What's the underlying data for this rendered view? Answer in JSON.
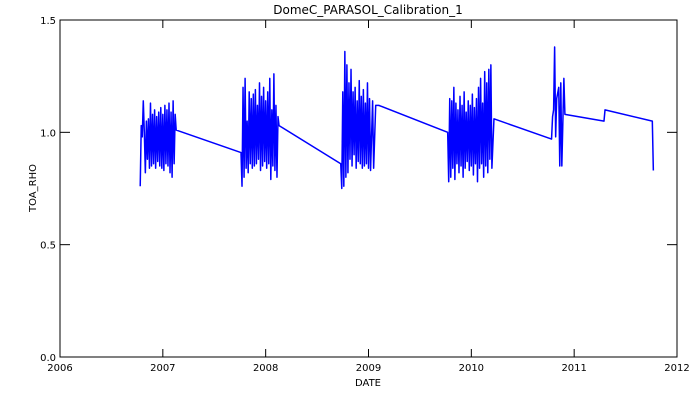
{
  "chart_data": {
    "type": "line",
    "title": "DomeC_PARASOL_Calibration_1",
    "x_label": "DATE",
    "y_label": "TOA_RHO",
    "xlim": [
      2006,
      2012
    ],
    "xticks": [
      2006,
      2007,
      2008,
      2009,
      2010,
      2011,
      2012
    ],
    "ylim": [
      0,
      1.5
    ],
    "yticks": [
      {
        "value": 0,
        "label": "0.0"
      },
      0.5,
      {
        "value": 1,
        "label": "1.0"
      },
      1.5
    ],
    "series": [
      {
        "color": "#0000ff",
        "x": [
          2006.78,
          2006.79,
          2006.8,
          2006.81,
          2006.82,
          2006.83,
          2006.84,
          2006.85,
          2006.86,
          2006.87,
          2006.88,
          2006.89,
          2006.9,
          2006.91,
          2006.92,
          2006.93,
          2006.94,
          2006.95,
          2006.96,
          2006.97,
          2006.98,
          2006.99,
          2007.0,
          2007.01,
          2007.02,
          2007.03,
          2007.04,
          2007.05,
          2007.06,
          2007.07,
          2007.08,
          2007.09,
          2007.1,
          2007.11,
          2007.12,
          2007.13,
          2007.76,
          2007.77,
          2007.78,
          2007.79,
          2007.8,
          2007.81,
          2007.82,
          2007.83,
          2007.84,
          2007.85,
          2007.86,
          2007.87,
          2007.88,
          2007.89,
          2007.9,
          2007.91,
          2007.92,
          2007.93,
          2007.94,
          2007.95,
          2007.96,
          2007.97,
          2007.98,
          2007.99,
          2008.0,
          2008.01,
          2008.02,
          2008.03,
          2008.04,
          2008.05,
          2008.06,
          2008.07,
          2008.08,
          2008.09,
          2008.1,
          2008.11,
          2008.12,
          2008.13,
          2008.73,
          2008.74,
          2008.75,
          2008.76,
          2008.77,
          2008.78,
          2008.79,
          2008.8,
          2008.81,
          2008.82,
          2008.83,
          2008.84,
          2008.85,
          2008.86,
          2008.87,
          2008.88,
          2008.89,
          2008.9,
          2008.91,
          2008.92,
          2008.93,
          2008.94,
          2008.95,
          2008.96,
          2008.97,
          2008.98,
          2008.99,
          2009.0,
          2009.01,
          2009.02,
          2009.04,
          2009.05,
          2009.07,
          2009.1,
          2009.77,
          2009.78,
          2009.79,
          2009.8,
          2009.81,
          2009.82,
          2009.83,
          2009.84,
          2009.85,
          2009.86,
          2009.87,
          2009.88,
          2009.89,
          2009.9,
          2009.91,
          2009.92,
          2009.93,
          2009.94,
          2009.95,
          2009.96,
          2009.97,
          2009.98,
          2009.99,
          2010.0,
          2010.01,
          2010.02,
          2010.03,
          2010.04,
          2010.05,
          2010.06,
          2010.07,
          2010.08,
          2010.09,
          2010.1,
          2010.11,
          2010.12,
          2010.13,
          2010.14,
          2010.15,
          2010.16,
          2010.17,
          2010.18,
          2010.19,
          2010.2,
          2010.22,
          2010.78,
          2010.79,
          2010.8,
          2010.81,
          2010.82,
          2010.83,
          2010.85,
          2010.86,
          2010.87,
          2010.88,
          2010.9,
          2010.91,
          2011.29,
          2011.3,
          2011.76,
          2011.77
        ],
        "values": [
          0.76,
          1.03,
          0.98,
          1.14,
          1.0,
          0.82,
          1.05,
          0.88,
          1.06,
          0.84,
          1.13,
          0.85,
          1.08,
          0.86,
          1.1,
          0.84,
          1.07,
          0.87,
          1.09,
          0.85,
          1.11,
          0.84,
          1.08,
          0.83,
          1.12,
          0.86,
          1.1,
          0.85,
          1.13,
          0.82,
          1.09,
          0.8,
          1.14,
          0.86,
          1.08,
          1.01,
          0.91,
          0.76,
          1.2,
          0.8,
          1.24,
          0.84,
          1.05,
          0.82,
          1.18,
          0.86,
          1.15,
          0.84,
          1.17,
          0.85,
          1.19,
          0.86,
          1.12,
          0.88,
          1.22,
          0.83,
          1.16,
          0.85,
          1.2,
          0.87,
          1.14,
          0.84,
          1.18,
          0.86,
          1.24,
          0.79,
          1.1,
          0.85,
          1.26,
          0.83,
          1.12,
          0.8,
          1.07,
          1.03,
          0.86,
          0.75,
          1.18,
          0.76,
          1.36,
          0.8,
          1.3,
          0.82,
          1.22,
          0.88,
          1.28,
          0.85,
          1.18,
          0.9,
          1.2,
          0.84,
          1.14,
          0.87,
          1.23,
          0.86,
          1.16,
          0.84,
          1.19,
          0.85,
          1.13,
          0.86,
          1.22,
          0.84,
          1.15,
          0.83,
          1.14,
          0.84,
          1.12,
          1.12,
          1.0,
          0.78,
          1.15,
          0.8,
          1.14,
          0.84,
          1.2,
          0.79,
          1.13,
          0.86,
          1.1,
          0.82,
          1.16,
          0.85,
          1.12,
          0.8,
          1.18,
          0.84,
          1.09,
          0.87,
          1.14,
          0.83,
          1.12,
          0.85,
          1.17,
          0.81,
          1.11,
          0.86,
          1.15,
          0.78,
          1.2,
          0.84,
          1.24,
          0.86,
          1.13,
          0.8,
          1.27,
          0.85,
          1.22,
          0.82,
          1.28,
          0.88,
          1.3,
          0.84,
          1.06,
          0.97,
          1.07,
          1.1,
          1.38,
          0.98,
          1.15,
          1.2,
          0.85,
          1.22,
          0.85,
          1.24,
          1.08,
          1.05,
          1.1,
          1.05,
          0.83
        ]
      }
    ]
  }
}
